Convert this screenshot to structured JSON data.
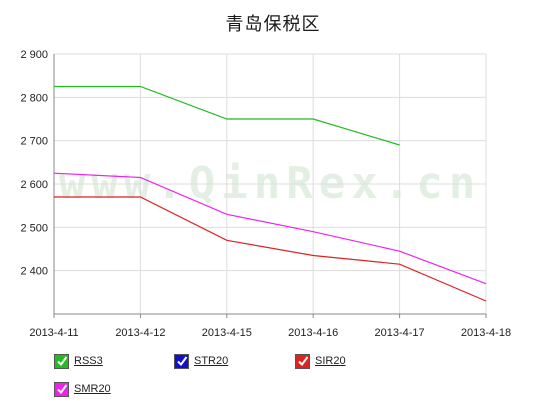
{
  "chart_data": {
    "type": "line",
    "title": "青岛保税区",
    "watermark": "www.QinRex.cn",
    "categories": [
      "2013-4-11",
      "2013-4-12",
      "2013-4-15",
      "2013-4-16",
      "2013-4-17",
      "2013-4-18"
    ],
    "ylim": [
      2300,
      2900
    ],
    "yticks": [
      2400,
      2500,
      2600,
      2700,
      2800,
      2900
    ],
    "ytick_labels": [
      "2 400",
      "2 500",
      "2 600",
      "2 700",
      "2 800",
      "2 900"
    ],
    "grid": true,
    "legend_position": "bottom-left",
    "series": [
      {
        "name": "RSS3",
        "color": "#22bb22",
        "values": [
          2825,
          2825,
          2750,
          2750,
          2690,
          null
        ]
      },
      {
        "name": "STR20",
        "color": "#1111cc",
        "values": [
          null,
          null,
          null,
          null,
          null,
          null
        ]
      },
      {
        "name": "SIR20",
        "color": "#dd2222",
        "values": [
          2570,
          2570,
          2470,
          2435,
          2415,
          2330
        ]
      },
      {
        "name": "SMR20",
        "color": "#ee22ee",
        "values": [
          2625,
          2615,
          2530,
          2490,
          2445,
          2370
        ]
      }
    ]
  }
}
